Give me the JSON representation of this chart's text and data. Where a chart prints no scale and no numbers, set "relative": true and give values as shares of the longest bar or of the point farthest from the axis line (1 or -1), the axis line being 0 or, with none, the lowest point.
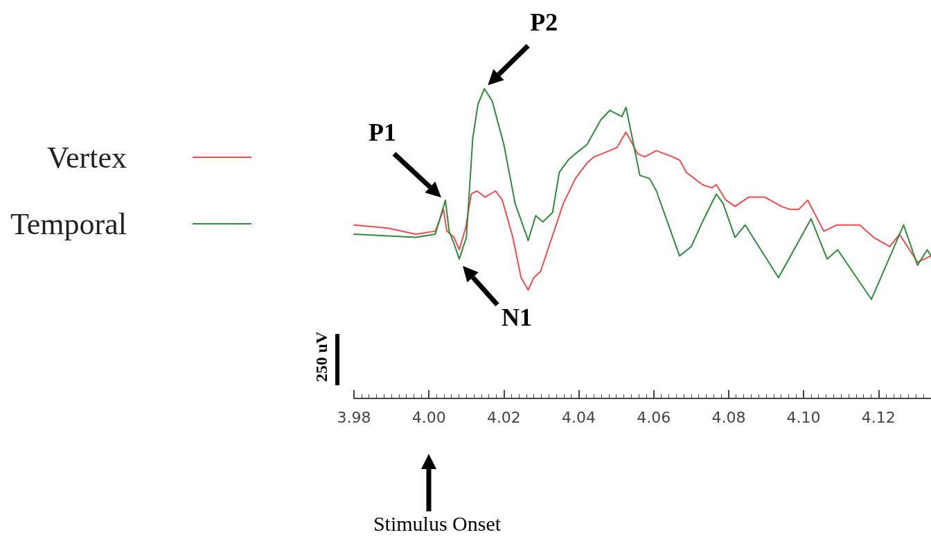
{
  "chart_data": {
    "type": "line",
    "relative": true,
    "xlim": [
      3.98,
      4.134
    ],
    "xticks": [
      3.98,
      {
        "value": 4.0,
        "label": "4.00"
      },
      4.02,
      4.04,
      4.06,
      4.08,
      {
        "value": 4.1,
        "label": "4.10"
      },
      4.12
    ],
    "legend": "left",
    "grid": false,
    "marker": "none",
    "line_style": "solid",
    "annotations": [
      {
        "text": "P1",
        "x": 4.0044,
        "y": 0.64
      },
      {
        "text": "N1",
        "x": 4.0081,
        "y": 0.45
      },
      {
        "text": "P2",
        "x": 4.0148,
        "y": 1.0
      },
      "Stimulus Onset",
      "250 uV"
    ],
    "series": [
      {
        "name": "Vertex",
        "color": "#f04a4a",
        "x": [
          3.98,
          3.9891,
          3.9965,
          4.0017,
          4.0039,
          4.0048,
          4.0067,
          4.0081,
          4.0098,
          4.0113,
          4.0128,
          4.015,
          4.0178,
          4.0196,
          4.0224,
          4.0246,
          4.0265,
          4.028,
          4.0298,
          4.0359,
          4.0391,
          4.0422,
          4.0441,
          4.0483,
          4.0502,
          4.0526,
          4.0557,
          4.0576,
          4.0607,
          4.065,
          4.0669,
          4.0687,
          4.073,
          4.0756,
          4.0767,
          4.0793,
          4.0817,
          4.0854,
          4.0878,
          4.0896,
          4.0941,
          4.0965,
          4.0987,
          4.1011,
          4.1054,
          4.1089,
          4.115,
          4.1187,
          4.123,
          4.1256,
          4.1304,
          4.134
        ],
        "values": [
          0.56,
          0.55,
          0.53,
          0.54,
          0.61,
          0.54,
          0.52,
          0.48,
          0.55,
          0.66,
          0.67,
          0.65,
          0.67,
          0.64,
          0.52,
          0.39,
          0.35,
          0.39,
          0.41,
          0.63,
          0.71,
          0.76,
          0.78,
          0.8,
          0.81,
          0.86,
          0.79,
          0.78,
          0.8,
          0.78,
          0.77,
          0.73,
          0.69,
          0.68,
          0.69,
          0.64,
          0.62,
          0.65,
          0.65,
          0.65,
          0.62,
          0.61,
          0.61,
          0.64,
          0.54,
          0.56,
          0.56,
          0.52,
          0.49,
          0.53,
          0.44,
          0.46
        ]
      },
      {
        "name": "Temporal",
        "color": "#2e8b3c",
        "x": [
          3.98,
          3.9965,
          4.0017,
          4.0044,
          4.0054,
          4.0067,
          4.0081,
          4.01,
          4.0117,
          4.0131,
          4.0148,
          4.0169,
          4.02,
          4.023,
          4.0265,
          4.0285,
          4.0304,
          4.033,
          4.0348,
          4.0372,
          4.0391,
          4.0422,
          4.0459,
          4.0483,
          4.0515,
          4.0526,
          4.0563,
          4.0589,
          4.0607,
          4.0669,
          4.07,
          4.073,
          4.0767,
          4.0785,
          4.0817,
          4.0844,
          4.0933,
          4.102,
          4.1063,
          4.1091,
          4.1181,
          4.1267,
          4.1304,
          4.133,
          4.134
        ],
        "values": [
          0.53,
          0.52,
          0.53,
          0.64,
          0.54,
          0.5,
          0.45,
          0.52,
          0.84,
          0.95,
          1.0,
          0.96,
          0.82,
          0.63,
          0.51,
          0.59,
          0.57,
          0.6,
          0.73,
          0.77,
          0.79,
          0.82,
          0.9,
          0.93,
          0.91,
          0.94,
          0.72,
          0.71,
          0.67,
          0.46,
          0.49,
          0.57,
          0.66,
          0.63,
          0.52,
          0.56,
          0.39,
          0.58,
          0.45,
          0.48,
          0.32,
          0.56,
          0.43,
          0.48,
          0.46
        ]
      }
    ]
  }
}
